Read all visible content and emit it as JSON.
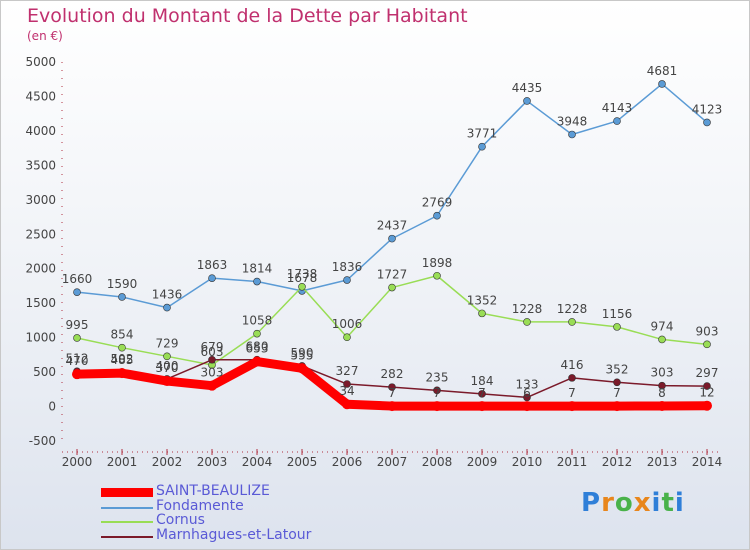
{
  "header": {
    "title": "Evolution du Montant de la Dette par Habitant",
    "unit": "(en €)"
  },
  "logo": {
    "text": "Proxiti",
    "letters": [
      "P",
      "r",
      "o",
      "x",
      "i",
      "t",
      "i"
    ],
    "colors": [
      "#2f7fd8",
      "#e8861c",
      "#49b24a",
      "#e8861c",
      "#2f7fd8",
      "#49b24a",
      "#2f7fd8"
    ]
  },
  "chart_data": {
    "type": "line",
    "title": "Evolution du Montant de la Dette par Habitant",
    "ylabel": "(en €)",
    "x": [
      2000,
      2001,
      2002,
      2003,
      2004,
      2005,
      2006,
      2007,
      2008,
      2009,
      2010,
      2011,
      2012,
      2013,
      2014
    ],
    "ylim": [
      -500,
      5000
    ],
    "yticks": [
      -500,
      0,
      500,
      1000,
      1500,
      2000,
      2500,
      3000,
      3500,
      4000,
      4500,
      5000
    ],
    "grid": false,
    "legend_position": "bottom-left",
    "series": [
      {
        "name": "SAINT-BEAULIZE",
        "color": "#ff0000",
        "values": [
          470,
          485,
          370,
          303,
          653,
          555,
          34,
          7,
          7,
          7,
          6,
          7,
          7,
          8,
          12
        ],
        "labels": [
          "470",
          "485",
          "370",
          "303",
          "653",
          "555",
          "34",
          "7",
          "7",
          "7",
          "6",
          "7",
          "7",
          "8",
          "12"
        ]
      },
      {
        "name": "Fondamente",
        "color": "#5b9bd5",
        "values": [
          1660,
          1590,
          1436,
          1863,
          1814,
          1678,
          1836,
          2437,
          2769,
          3771,
          4435,
          3948,
          4143,
          4681,
          4123
        ],
        "labels": [
          "1660",
          "1590",
          "1436",
          "1863",
          "1814",
          "1678",
          "1836",
          "2437",
          "2769",
          "3771",
          "4435",
          "3948",
          "4143",
          "4681",
          "4123"
        ]
      },
      {
        "name": "Cornus",
        "color": "#99dd55",
        "values": [
          995,
          854,
          729,
          603,
          1058,
          1738,
          1006,
          1727,
          1898,
          1352,
          1228,
          1228,
          1156,
          974,
          903
        ],
        "labels": [
          "995",
          "854",
          "729",
          "603",
          "1058",
          "1738",
          "1006",
          "1727",
          "1898",
          "1352",
          "1228",
          "1228",
          "1156",
          "974",
          "903"
        ]
      },
      {
        "name": "Marnhagues-et-Latour",
        "color": "#7b1a2a",
        "values": [
          512,
          502,
          400,
          679,
          680,
          590,
          327,
          282,
          235,
          184,
          133,
          416,
          352,
          303,
          297
        ],
        "labels": [
          "512",
          "502",
          "400",
          "679",
          "680",
          "590",
          "327",
          "282",
          "235",
          "184",
          "133",
          "416",
          "352",
          "303",
          "297"
        ]
      }
    ]
  }
}
